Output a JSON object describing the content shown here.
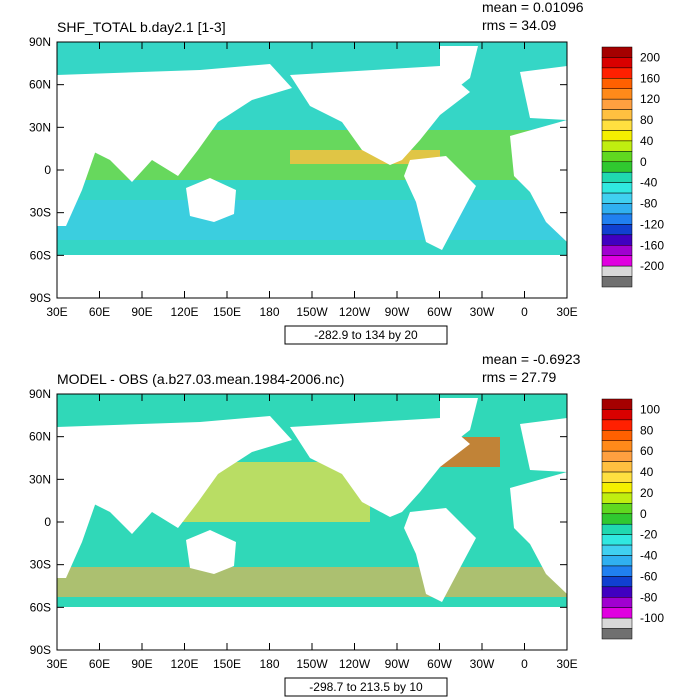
{
  "panels": [
    {
      "title": "SHF_TOTAL b.day2.1 [1-3]",
      "mean": "mean = 0.01096",
      "rms": "rms = 34.09",
      "range": "-282.9 to 134 by 20",
      "colorbar_labels": [
        "200",
        "160",
        "120",
        "80",
        "40",
        "0",
        "-40",
        "-80",
        "-120",
        "-160",
        "-200"
      ]
    },
    {
      "title": "MODEL - OBS (a.b27.03.mean.1984-2006.nc)",
      "mean": "mean = -0.6923",
      "rms": "rms = 27.79",
      "range": "-298.7 to 213.5 by 10",
      "colorbar_labels": [
        "100",
        "80",
        "60",
        "40",
        "20",
        "0",
        "-20",
        "-40",
        "-60",
        "-80",
        "-100"
      ]
    }
  ],
  "lat_labels": [
    "90N",
    "60N",
    "30N",
    "0",
    "30S",
    "60S",
    "90S"
  ],
  "lon_labels": [
    "30E",
    "60E",
    "90E",
    "120E",
    "150E",
    "180",
    "150W",
    "120W",
    "90W",
    "60W",
    "30W",
    "0",
    "30E"
  ],
  "colorbar_colors": [
    "#a50000",
    "#d90000",
    "#ff2000",
    "#ff6000",
    "#ff8a1a",
    "#ffa040",
    "#ffc040",
    "#ffe040",
    "#f4f000",
    "#c0ee10",
    "#60d820",
    "#30c830",
    "#20d8b0",
    "#30e8e0",
    "#40d0f0",
    "#30b0f0",
    "#2080f0",
    "#1040d0",
    "#4000c0",
    "#a000d0",
    "#e000e0",
    "#d8d8d8",
    "#707070"
  ]
}
